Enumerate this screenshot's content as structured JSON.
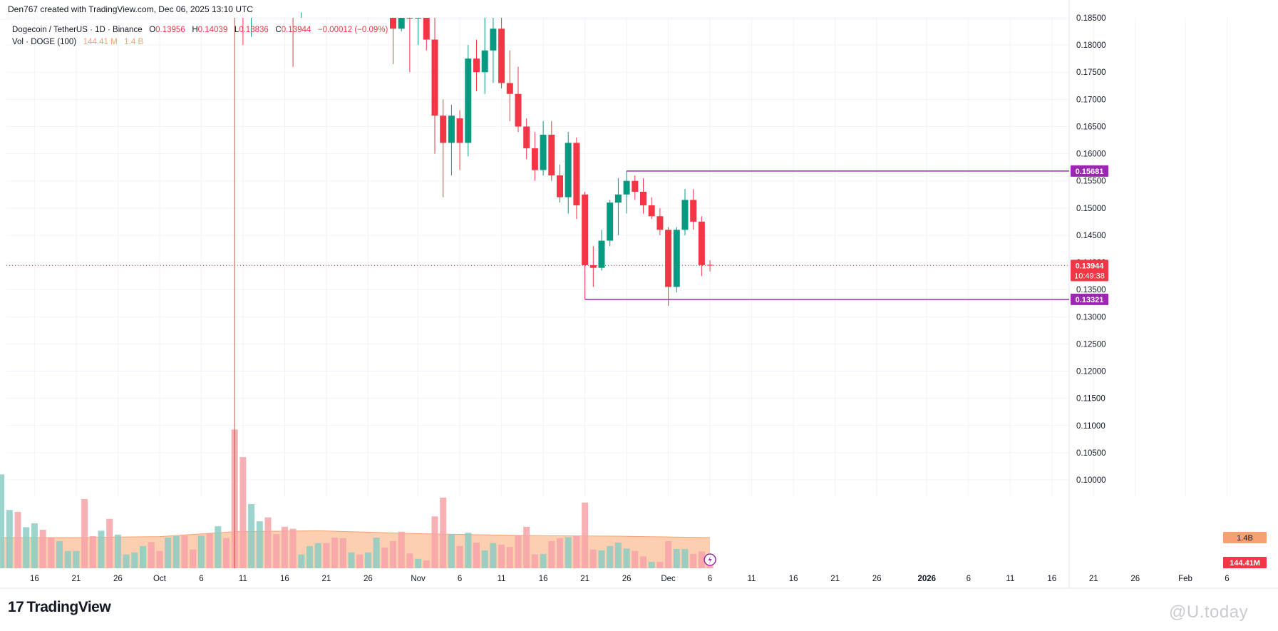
{
  "header": {
    "credit": "Den767 created with TradingView.com, Dec 06, 2025 13:10 UTC"
  },
  "legend": {
    "symbol": "Dogecoin / TetherUS · 1D · Binance",
    "open_label": "O",
    "open": "0.13956",
    "high_label": "H",
    "high": "0.14039",
    "low_label": "L",
    "low": "0.13836",
    "close_label": "C",
    "close": "0.13944",
    "change": "−0.00012 (−0.09%)",
    "vol_label": "Vol · DOGE (100)",
    "vol_value": "144.41 M",
    "vol_ma": "1.4 B"
  },
  "footer": {
    "logo_text": "TradingView",
    "watermark": "@U.today"
  },
  "colors": {
    "up": "#089981",
    "down": "#f23645",
    "level": "#9c27b0",
    "vol_up": "#8ccdc4",
    "vol_down": "#f6a3a8",
    "vol_ma_fill": "#fbbf95",
    "vol_ma_line": "#f7a072"
  },
  "chart_data": {
    "type": "candlestick",
    "ylim": [
      0.0965,
      0.1875
    ],
    "price_ticks": [
      "0.10000",
      "0.10500",
      "0.11000",
      "0.11500",
      "0.12000",
      "0.12500",
      "0.13000",
      "0.13500",
      "0.14000",
      "0.14500",
      "0.15000",
      "0.15500",
      "0.16000",
      "0.16500",
      "0.17000",
      "0.17500",
      "0.18000",
      "0.18500"
    ],
    "x_ticks": [
      "16",
      "21",
      "26",
      "Oct",
      "6",
      "11",
      "16",
      "21",
      "26",
      "Nov",
      "6",
      "11",
      "16",
      "21",
      "26",
      "Dec",
      "6",
      "11",
      "16",
      "21",
      "26",
      "2026",
      "6",
      "11",
      "16",
      "21",
      "26",
      "Feb",
      "6"
    ],
    "x_ticks_bold": [
      "2026"
    ],
    "current_price": "0.13944",
    "countdown": "10:49:38",
    "levels": [
      {
        "price": 0.15681,
        "label": "0.15681",
        "start_date": "2025-11-26"
      },
      {
        "price": 0.13321,
        "label": "0.13321",
        "start_date": "2025-11-21"
      }
    ],
    "volume_labels": {
      "ma": "1.4B",
      "current": "144.41M"
    },
    "candles": [
      {
        "date": "2025-10-29",
        "o": 0.186,
        "h": 0.188,
        "l": 0.1765,
        "c": 0.183
      },
      {
        "date": "2025-10-30",
        "o": 0.183,
        "h": 0.188,
        "l": 0.1825,
        "c": 0.185
      },
      {
        "date": "2025-10-31",
        "o": 0.187,
        "h": 0.1885,
        "l": 0.175,
        "c": 0.186
      },
      {
        "date": "2025-11-01",
        "o": 0.186,
        "h": 0.189,
        "l": 0.18,
        "c": 0.188
      },
      {
        "date": "2025-11-02",
        "o": 0.187,
        "h": 0.188,
        "l": 0.179,
        "c": 0.181
      },
      {
        "date": "2025-11-03",
        "o": 0.181,
        "h": 0.185,
        "l": 0.16,
        "c": 0.167
      },
      {
        "date": "2025-11-04",
        "o": 0.167,
        "h": 0.17,
        "l": 0.152,
        "c": 0.162
      },
      {
        "date": "2025-11-05",
        "o": 0.162,
        "h": 0.169,
        "l": 0.156,
        "c": 0.167
      },
      {
        "date": "2025-11-06",
        "o": 0.1665,
        "h": 0.168,
        "l": 0.157,
        "c": 0.162
      },
      {
        "date": "2025-11-07",
        "o": 0.162,
        "h": 0.18,
        "l": 0.1595,
        "c": 0.1775
      },
      {
        "date": "2025-11-08",
        "o": 0.1775,
        "h": 0.181,
        "l": 0.1715,
        "c": 0.175
      },
      {
        "date": "2025-11-09",
        "o": 0.175,
        "h": 0.186,
        "l": 0.171,
        "c": 0.179
      },
      {
        "date": "2025-11-10",
        "o": 0.179,
        "h": 0.187,
        "l": 0.173,
        "c": 0.183
      },
      {
        "date": "2025-11-11",
        "o": 0.183,
        "h": 0.1855,
        "l": 0.172,
        "c": 0.173
      },
      {
        "date": "2025-11-12",
        "o": 0.173,
        "h": 0.179,
        "l": 0.166,
        "c": 0.171
      },
      {
        "date": "2025-11-13",
        "o": 0.171,
        "h": 0.176,
        "l": 0.164,
        "c": 0.165
      },
      {
        "date": "2025-11-14",
        "o": 0.165,
        "h": 0.1665,
        "l": 0.159,
        "c": 0.161
      },
      {
        "date": "2025-11-15",
        "o": 0.161,
        "h": 0.164,
        "l": 0.155,
        "c": 0.157
      },
      {
        "date": "2025-11-16",
        "o": 0.157,
        "h": 0.166,
        "l": 0.156,
        "c": 0.1635
      },
      {
        "date": "2025-11-17",
        "o": 0.1635,
        "h": 0.166,
        "l": 0.155,
        "c": 0.156
      },
      {
        "date": "2025-11-18",
        "o": 0.156,
        "h": 0.158,
        "l": 0.151,
        "c": 0.152
      },
      {
        "date": "2025-11-19",
        "o": 0.152,
        "h": 0.164,
        "l": 0.149,
        "c": 0.162
      },
      {
        "date": "2025-11-20",
        "o": 0.162,
        "h": 0.163,
        "l": 0.148,
        "c": 0.1505
      },
      {
        "date": "2025-11-21",
        "o": 0.1525,
        "h": 0.153,
        "l": 0.1332,
        "c": 0.1395
      },
      {
        "date": "2025-11-22",
        "o": 0.1395,
        "h": 0.143,
        "l": 0.1355,
        "c": 0.139
      },
      {
        "date": "2025-11-23",
        "o": 0.139,
        "h": 0.146,
        "l": 0.1385,
        "c": 0.144
      },
      {
        "date": "2025-11-24",
        "o": 0.144,
        "h": 0.1515,
        "l": 0.143,
        "c": 0.151
      },
      {
        "date": "2025-11-25",
        "o": 0.151,
        "h": 0.1555,
        "l": 0.145,
        "c": 0.1525
      },
      {
        "date": "2025-11-26",
        "o": 0.1525,
        "h": 0.1568,
        "l": 0.149,
        "c": 0.155
      },
      {
        "date": "2025-11-27",
        "o": 0.155,
        "h": 0.156,
        "l": 0.1515,
        "c": 0.153
      },
      {
        "date": "2025-11-28",
        "o": 0.153,
        "h": 0.1555,
        "l": 0.149,
        "c": 0.1505
      },
      {
        "date": "2025-11-29",
        "o": 0.1505,
        "h": 0.152,
        "l": 0.148,
        "c": 0.1485
      },
      {
        "date": "2025-11-30",
        "o": 0.1485,
        "h": 0.15,
        "l": 0.145,
        "c": 0.146
      },
      {
        "date": "2025-12-01",
        "o": 0.146,
        "h": 0.1465,
        "l": 0.132,
        "c": 0.1355
      },
      {
        "date": "2025-12-02",
        "o": 0.1355,
        "h": 0.1465,
        "l": 0.1345,
        "c": 0.146
      },
      {
        "date": "2025-12-03",
        "o": 0.146,
        "h": 0.1535,
        "l": 0.145,
        "c": 0.1515
      },
      {
        "date": "2025-12-04",
        "o": 0.1515,
        "h": 0.1535,
        "l": 0.146,
        "c": 0.1475
      },
      {
        "date": "2025-12-05",
        "o": 0.1475,
        "h": 0.1485,
        "l": 0.1375,
        "c": 0.1395
      },
      {
        "date": "2025-12-06",
        "o": 0.13956,
        "h": 0.14039,
        "l": 0.13836,
        "c": 0.13944
      }
    ],
    "early_spikes": [
      {
        "date": "2025-10-10",
        "h": 0.187,
        "l": 0.0965,
        "dir": "down"
      },
      {
        "date": "2025-10-11",
        "h": 0.1875,
        "l": 0.18,
        "dir": "down"
      },
      {
        "date": "2025-10-12",
        "h": 0.1875,
        "l": 0.1815,
        "dir": "up"
      },
      {
        "date": "2025-10-17",
        "h": 0.1875,
        "l": 0.176,
        "dir": "down"
      },
      {
        "date": "2025-10-18",
        "h": 0.1875,
        "l": 0.186,
        "dir": "up"
      }
    ],
    "volume": {
      "ylim": [
        0,
        2.8
      ],
      "bars": [
        {
          "date": "2025-09-12",
          "v": 1.9,
          "dir": "up"
        },
        {
          "date": "2025-09-13",
          "v": 1.18,
          "dir": "up"
        },
        {
          "date": "2025-09-14",
          "v": 1.14,
          "dir": "down"
        },
        {
          "date": "2025-09-15",
          "v": 0.83,
          "dir": "up"
        },
        {
          "date": "2025-09-16",
          "v": 0.91,
          "dir": "up"
        },
        {
          "date": "2025-09-17",
          "v": 0.78,
          "dir": "down"
        },
        {
          "date": "2025-09-18",
          "v": 0.62,
          "dir": "down"
        },
        {
          "date": "2025-09-19",
          "v": 0.55,
          "dir": "up"
        },
        {
          "date": "2025-09-20",
          "v": 0.35,
          "dir": "up"
        },
        {
          "date": "2025-09-21",
          "v": 0.35,
          "dir": "up"
        },
        {
          "date": "2025-09-22",
          "v": 1.4,
          "dir": "down"
        },
        {
          "date": "2025-09-23",
          "v": 0.65,
          "dir": "down"
        },
        {
          "date": "2025-09-24",
          "v": 0.76,
          "dir": "up"
        },
        {
          "date": "2025-09-25",
          "v": 1.0,
          "dir": "down"
        },
        {
          "date": "2025-09-26",
          "v": 0.68,
          "dir": "up"
        },
        {
          "date": "2025-09-27",
          "v": 0.28,
          "dir": "up"
        },
        {
          "date": "2025-09-28",
          "v": 0.32,
          "dir": "up"
        },
        {
          "date": "2025-09-29",
          "v": 0.45,
          "dir": "up"
        },
        {
          "date": "2025-09-30",
          "v": 0.53,
          "dir": "down"
        },
        {
          "date": "2025-10-01",
          "v": 0.35,
          "dir": "down"
        },
        {
          "date": "2025-10-02",
          "v": 0.62,
          "dir": "up"
        },
        {
          "date": "2025-10-03",
          "v": 0.65,
          "dir": "up"
        },
        {
          "date": "2025-10-04",
          "v": 0.66,
          "dir": "down"
        },
        {
          "date": "2025-10-05",
          "v": 0.38,
          "dir": "down"
        },
        {
          "date": "2025-10-06",
          "v": 0.66,
          "dir": "up"
        },
        {
          "date": "2025-10-07",
          "v": 0.7,
          "dir": "down"
        },
        {
          "date": "2025-10-08",
          "v": 0.85,
          "dir": "up"
        },
        {
          "date": "2025-10-09",
          "v": 0.61,
          "dir": "down"
        },
        {
          "date": "2025-10-10",
          "v": 2.81,
          "dir": "down"
        },
        {
          "date": "2025-10-11",
          "v": 2.25,
          "dir": "down"
        },
        {
          "date": "2025-10-12",
          "v": 1.3,
          "dir": "up"
        },
        {
          "date": "2025-10-13",
          "v": 0.95,
          "dir": "up"
        },
        {
          "date": "2025-10-14",
          "v": 1.03,
          "dir": "down"
        },
        {
          "date": "2025-10-15",
          "v": 0.69,
          "dir": "down"
        },
        {
          "date": "2025-10-16",
          "v": 0.84,
          "dir": "down"
        },
        {
          "date": "2025-10-17",
          "v": 0.8,
          "dir": "down"
        },
        {
          "date": "2025-10-18",
          "v": 0.28,
          "dir": "up"
        },
        {
          "date": "2025-10-19",
          "v": 0.45,
          "dir": "up"
        },
        {
          "date": "2025-10-20",
          "v": 0.51,
          "dir": "up"
        },
        {
          "date": "2025-10-21",
          "v": 0.51,
          "dir": "down"
        },
        {
          "date": "2025-10-22",
          "v": 0.62,
          "dir": "down"
        },
        {
          "date": "2025-10-23",
          "v": 0.61,
          "dir": "down"
        },
        {
          "date": "2025-10-24",
          "v": 0.32,
          "dir": "up"
        },
        {
          "date": "2025-10-25",
          "v": 0.28,
          "dir": "down"
        },
        {
          "date": "2025-10-26",
          "v": 0.32,
          "dir": "up"
        },
        {
          "date": "2025-10-27",
          "v": 0.62,
          "dir": "up"
        },
        {
          "date": "2025-10-28",
          "v": 0.42,
          "dir": "down"
        },
        {
          "date": "2025-10-29",
          "v": 0.55,
          "dir": "down"
        },
        {
          "date": "2025-10-30",
          "v": 0.74,
          "dir": "down"
        },
        {
          "date": "2025-10-31",
          "v": 0.3,
          "dir": "down"
        },
        {
          "date": "2025-11-01",
          "v": 0.19,
          "dir": "up"
        },
        {
          "date": "2025-11-02",
          "v": 0.16,
          "dir": "down"
        },
        {
          "date": "2025-11-03",
          "v": 1.05,
          "dir": "down"
        },
        {
          "date": "2025-11-04",
          "v": 1.43,
          "dir": "down"
        },
        {
          "date": "2025-11-05",
          "v": 0.68,
          "dir": "up"
        },
        {
          "date": "2025-11-06",
          "v": 0.45,
          "dir": "down"
        },
        {
          "date": "2025-11-07",
          "v": 0.72,
          "dir": "up"
        },
        {
          "date": "2025-11-08",
          "v": 0.52,
          "dir": "down"
        },
        {
          "date": "2025-11-09",
          "v": 0.36,
          "dir": "up"
        },
        {
          "date": "2025-11-10",
          "v": 0.51,
          "dir": "up"
        },
        {
          "date": "2025-11-11",
          "v": 0.48,
          "dir": "down"
        },
        {
          "date": "2025-11-12",
          "v": 0.43,
          "dir": "down"
        },
        {
          "date": "2025-11-13",
          "v": 0.67,
          "dir": "down"
        },
        {
          "date": "2025-11-14",
          "v": 0.84,
          "dir": "down"
        },
        {
          "date": "2025-11-15",
          "v": 0.28,
          "dir": "down"
        },
        {
          "date": "2025-11-16",
          "v": 0.29,
          "dir": "up"
        },
        {
          "date": "2025-11-17",
          "v": 0.55,
          "dir": "down"
        },
        {
          "date": "2025-11-18",
          "v": 0.61,
          "dir": "down"
        },
        {
          "date": "2025-11-19",
          "v": 0.63,
          "dir": "up"
        },
        {
          "date": "2025-11-20",
          "v": 0.65,
          "dir": "down"
        },
        {
          "date": "2025-11-21",
          "v": 1.33,
          "dir": "down"
        },
        {
          "date": "2025-11-22",
          "v": 0.38,
          "dir": "down"
        },
        {
          "date": "2025-11-23",
          "v": 0.36,
          "dir": "up"
        },
        {
          "date": "2025-11-24",
          "v": 0.45,
          "dir": "up"
        },
        {
          "date": "2025-11-25",
          "v": 0.52,
          "dir": "up"
        },
        {
          "date": "2025-11-26",
          "v": 0.4,
          "dir": "up"
        },
        {
          "date": "2025-11-27",
          "v": 0.35,
          "dir": "down"
        },
        {
          "date": "2025-11-28",
          "v": 0.24,
          "dir": "down"
        },
        {
          "date": "2025-11-29",
          "v": 0.13,
          "dir": "up"
        },
        {
          "date": "2025-11-30",
          "v": 0.13,
          "dir": "down"
        },
        {
          "date": "2025-12-01",
          "v": 0.55,
          "dir": "down"
        },
        {
          "date": "2025-12-02",
          "v": 0.39,
          "dir": "up"
        },
        {
          "date": "2025-12-03",
          "v": 0.39,
          "dir": "up"
        },
        {
          "date": "2025-12-04",
          "v": 0.29,
          "dir": "down"
        },
        {
          "date": "2025-12-05",
          "v": 0.34,
          "dir": "down"
        },
        {
          "date": "2025-12-06",
          "v": 0.07,
          "dir": "down"
        }
      ],
      "ma": [
        {
          "date": "2025-09-12",
          "v": 0.62
        },
        {
          "date": "2025-09-20",
          "v": 0.62
        },
        {
          "date": "2025-10-01",
          "v": 0.64
        },
        {
          "date": "2025-10-10",
          "v": 0.74
        },
        {
          "date": "2025-10-20",
          "v": 0.76
        },
        {
          "date": "2025-11-01",
          "v": 0.7
        },
        {
          "date": "2025-11-15",
          "v": 0.66
        },
        {
          "date": "2025-11-25",
          "v": 0.65
        },
        {
          "date": "2025-12-06",
          "v": 0.62
        }
      ]
    }
  }
}
